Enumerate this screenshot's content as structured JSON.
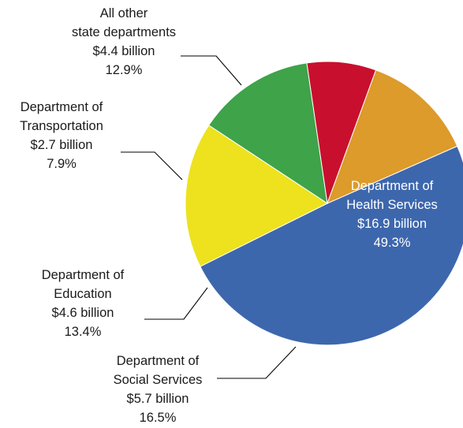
{
  "chart_data": {
    "type": "pie",
    "title": "",
    "unit": "billion",
    "slices": [
      {
        "name": "Department of Health Services",
        "label_lines": [
          "Department of",
          "Health Services",
          "$16.9 billion",
          "49.3%"
        ],
        "value": 16.9,
        "percent": 49.3,
        "color": "#3d67ad"
      },
      {
        "name": "Department of Social Services",
        "label_lines": [
          "Department of",
          "Social Services",
          "$5.7 billion",
          "16.5%"
        ],
        "value": 5.7,
        "percent": 16.5,
        "color": "#ede21d"
      },
      {
        "name": "Department of Education",
        "label_lines": [
          "Department of",
          "Education",
          "$4.6 billion",
          "13.4%"
        ],
        "value": 4.6,
        "percent": 13.4,
        "color": "#3ea349"
      },
      {
        "name": "Department of Transportation",
        "label_lines": [
          "Department of",
          "Transportation",
          "$2.7 billion",
          "7.9%"
        ],
        "value": 2.7,
        "percent": 7.9,
        "color": "#c8102e"
      },
      {
        "name": "All other state departments",
        "label_lines": [
          "All other",
          "state departments",
          "$4.4 billion",
          "12.9%"
        ],
        "value": 4.4,
        "percent": 12.9,
        "color": "#dc9b2a"
      }
    ]
  }
}
